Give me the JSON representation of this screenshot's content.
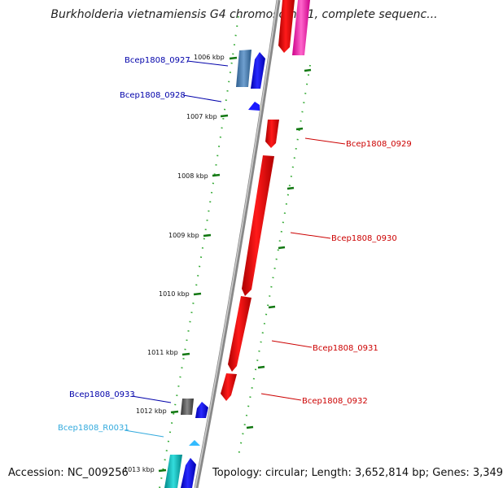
{
  "title": "Burkholderia vietnamiensis G4 chromosome 1, complete sequenc...",
  "accession": "Accession: NC_009256",
  "topology": "Topology: circular; Length: 3,652,814 bp; Genes: 3,349",
  "colors": {
    "forward_gene": "#1a1aff",
    "reverse_gene": "#ee0000",
    "rna_gene": "#33bbff",
    "forward_label": "#0000aa",
    "reverse_label": "#cc0000",
    "rna_label": "#33aadd",
    "tick": "#228822",
    "backbone": "#888888"
  },
  "ticks": [
    "1006 kbp",
    "1007 kbp",
    "1008 kbp",
    "1009 kbp",
    "1010 kbp",
    "1011 kbp",
    "1012 kbp",
    "1013 kbp"
  ],
  "gene_labels": [
    {
      "name": "Bcep1808_0927",
      "strand": "forward"
    },
    {
      "name": "Bcep1808_0928",
      "strand": "forward"
    },
    {
      "name": "Bcep1808_0929",
      "strand": "reverse"
    },
    {
      "name": "Bcep1808_0930",
      "strand": "reverse"
    },
    {
      "name": "Bcep1808_0931",
      "strand": "reverse"
    },
    {
      "name": "Bcep1808_0932",
      "strand": "reverse"
    },
    {
      "name": "Bcep1808_0933",
      "strand": "forward"
    },
    {
      "name": "Bcep1808_R0031",
      "strand": "rna"
    }
  ]
}
